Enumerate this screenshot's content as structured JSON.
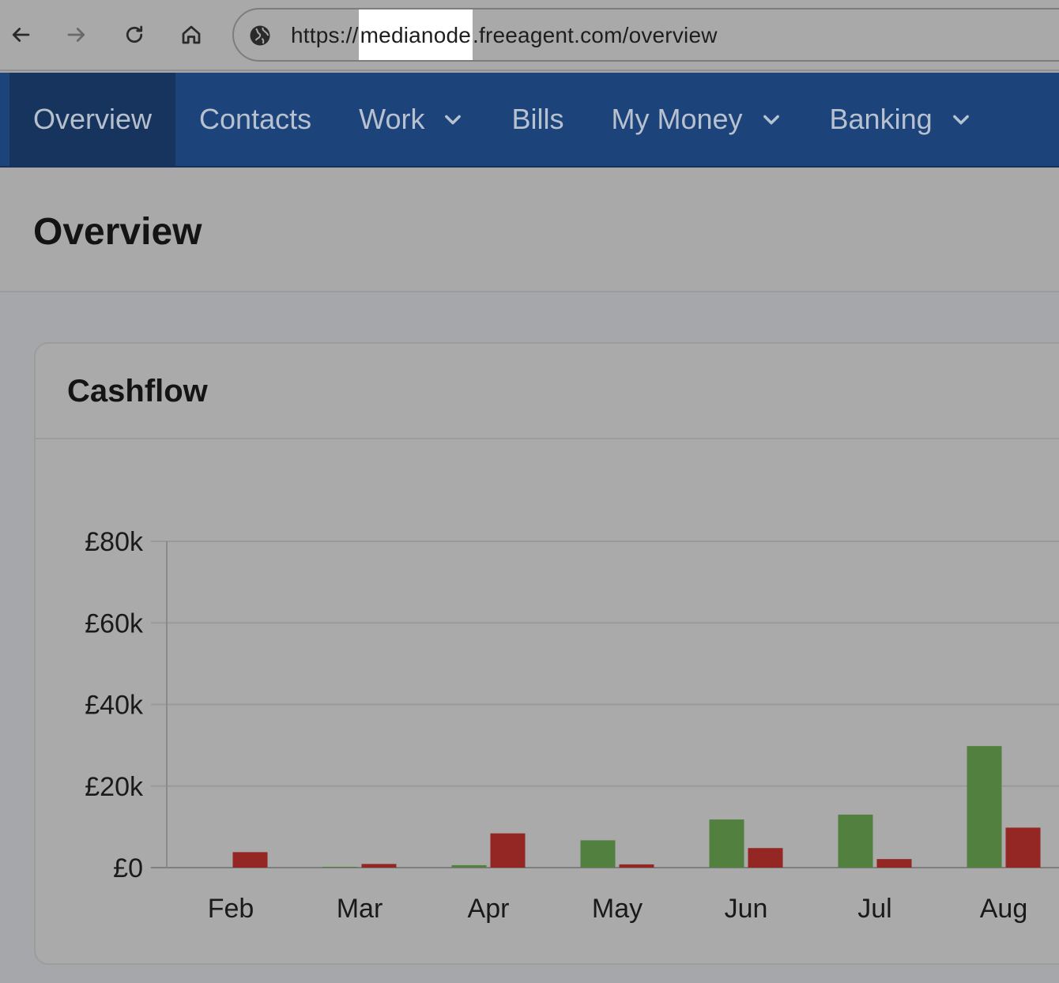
{
  "browser": {
    "url_prefix": "https://",
    "url_host": "medianode",
    "url_rest": ".freeagent.com/overview",
    "icons": [
      "back-arrow-icon",
      "forward-arrow-icon",
      "reload-icon",
      "home-icon",
      "globe-icon"
    ]
  },
  "nav": {
    "items": [
      {
        "label": "Overview",
        "active": true,
        "dropdown": false
      },
      {
        "label": "Contacts",
        "active": false,
        "dropdown": false
      },
      {
        "label": "Work",
        "active": false,
        "dropdown": true
      },
      {
        "label": "Bills",
        "active": false,
        "dropdown": false
      },
      {
        "label": "My Money",
        "active": false,
        "dropdown": true
      },
      {
        "label": "Banking",
        "active": false,
        "dropdown": true
      }
    ],
    "colors": {
      "background": "#1d447a",
      "active": "#17345f"
    }
  },
  "page": {
    "title": "Overview"
  },
  "cashflow": {
    "title": "Cashflow"
  },
  "chart_data": {
    "type": "bar",
    "categories": [
      "Feb",
      "Mar",
      "Apr",
      "May",
      "Jun",
      "Jul",
      "Aug"
    ],
    "series": [
      {
        "color": "#51803f",
        "values": [
          0,
          200,
          600,
          6700,
          11800,
          13000,
          29800
        ]
      },
      {
        "color": "#942723",
        "values": [
          3800,
          900,
          8400,
          800,
          4800,
          2100,
          9800
        ]
      }
    ],
    "yticks": [
      {
        "value": 0,
        "label": "£0"
      },
      {
        "value": 20000,
        "label": "£20k"
      },
      {
        "value": 40000,
        "label": "£40k"
      },
      {
        "value": 60000,
        "label": "£60k"
      },
      {
        "value": 80000,
        "label": "£80k"
      }
    ],
    "ylim": [
      0,
      80000
    ],
    "grid": true,
    "legend": "none"
  }
}
